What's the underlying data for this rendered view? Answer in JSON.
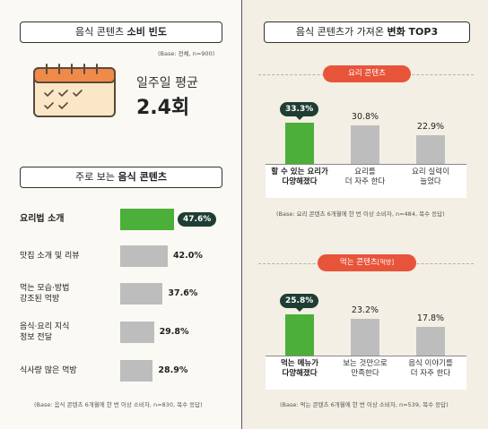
{
  "left": {
    "freq_title_plain": "음식 콘텐츠 ",
    "freq_title_bold": "소비 빈도",
    "freq_base": "(Base: 전체, n=900)",
    "avg_label": "일주일 평균",
    "avg_value": "2.4회",
    "main_title_plain": "주로 보는 ",
    "main_title_bold": "음식 콘텐츠",
    "base": "(Base: 음식 콘텐츠 6개월에 한 번 이상 소비자, n=830, 복수 응답)"
  },
  "right": {
    "title_plain": "음식 콘텐츠가 가져온 ",
    "title_bold": "변화 TOP3",
    "cook_title": "요리 콘텐츠",
    "cook_base": "(Base: 요리 콘텐츠 6개월에 한 번 이상 소비자, n=484, 복수 응답)",
    "mukbang_title": "먹는 콘텐츠",
    "mukbang_title_suffix": "[먹방]",
    "mukbang_base": "(Base: 먹는 콘텐츠 6개월에 한 번 이상 소비자, n=539, 복수 응답)"
  },
  "colors": {
    "highlight": "#4caf3a",
    "bar": "#bdbdbd",
    "pill_dark": "#1f3d33",
    "pill_red": "#e8543a"
  },
  "chart_data": [
    {
      "type": "bar",
      "orientation": "horizontal",
      "categories": [
        "요리법 소개",
        "맛집 소개 및 리뷰",
        "먹는 모습·방법 강조된 먹방",
        "음식·요리 지식 정보 전달",
        "식사량 많은 먹방"
      ],
      "category_lines": [
        [
          "요리법 소개"
        ],
        [
          "맛집 소개 및 리뷰"
        ],
        [
          "먹는 모습·방법",
          "강조된 먹방"
        ],
        [
          "음식·요리 지식",
          "정보 전달"
        ],
        [
          "식사량 많은 먹방"
        ]
      ],
      "values": [
        47.6,
        42.0,
        37.6,
        29.8,
        28.9
      ],
      "labels": [
        "47.6%",
        "42.0%",
        "37.6%",
        "29.8%",
        "28.9%"
      ],
      "xlim": [
        0,
        50
      ]
    },
    {
      "type": "bar",
      "categories": [
        "할 수 있는 요리가 다양해졌다",
        "요리를 더 자주 한다",
        "요리 실력이 늘었다"
      ],
      "category_lines": [
        [
          "할 수 있는 요리가",
          "다양해졌다"
        ],
        [
          "요리를",
          "더 자주 한다"
        ],
        [
          "요리 실력이",
          "늘었다"
        ]
      ],
      "values": [
        33.3,
        30.8,
        22.9
      ],
      "labels": [
        "33.3%",
        "30.8%",
        "22.9%"
      ],
      "ylim": [
        0,
        35
      ]
    },
    {
      "type": "bar",
      "categories": [
        "먹는 메뉴가 다양해졌다",
        "보는 것만으로 만족한다",
        "음식 이야기를 더 자주 한다"
      ],
      "category_lines": [
        [
          "먹는 메뉴가",
          "다양해졌다"
        ],
        [
          "보는 것만으로",
          "만족한다"
        ],
        [
          "음식 이야기를",
          "더 자주 한다"
        ]
      ],
      "values": [
        25.8,
        23.2,
        17.8
      ],
      "labels": [
        "25.8%",
        "23.2%",
        "17.8%"
      ],
      "ylim": [
        0,
        35
      ]
    }
  ]
}
